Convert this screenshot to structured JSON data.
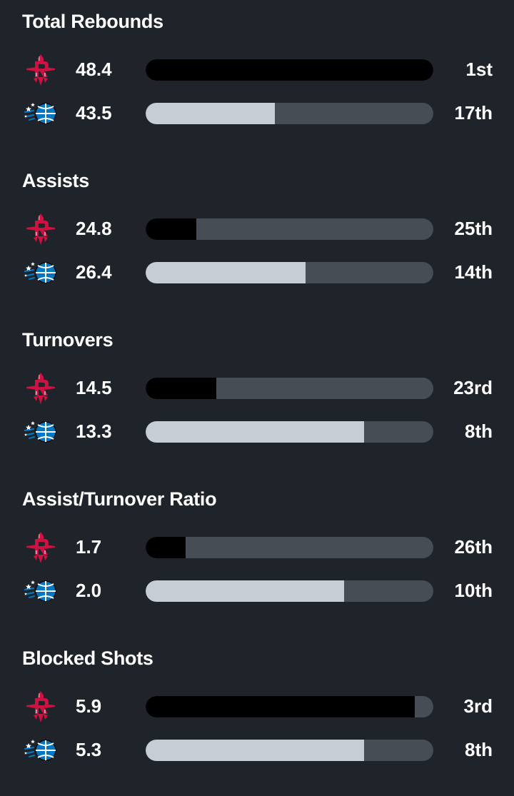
{
  "colors": {
    "background": "#1f232a",
    "track": "#464d55",
    "home_bar": "#000000",
    "away_bar": "#c6cdd4",
    "text": "#ffffff",
    "rockets_red": "#ce1141",
    "magic_blue": "#0077c0"
  },
  "teams": {
    "home": {
      "logo_icon": "houston-rockets-logo-icon"
    },
    "away": {
      "logo_icon": "orlando-magic-logo-icon"
    }
  },
  "sections": [
    {
      "title": "Total Rebounds",
      "home": {
        "value": "48.4",
        "rank": "1st",
        "bar_fraction": 1.0
      },
      "away": {
        "value": "43.5",
        "rank": "17th",
        "bar_fraction": 0.45
      }
    },
    {
      "title": "Assists",
      "home": {
        "value": "24.8",
        "rank": "25th",
        "bar_fraction": 0.175
      },
      "away": {
        "value": "26.4",
        "rank": "14th",
        "bar_fraction": 0.555
      }
    },
    {
      "title": "Turnovers",
      "home": {
        "value": "14.5",
        "rank": "23rd",
        "bar_fraction": 0.245
      },
      "away": {
        "value": "13.3",
        "rank": "8th",
        "bar_fraction": 0.76
      }
    },
    {
      "title": "Assist/Turnover Ratio",
      "home": {
        "value": "1.7",
        "rank": "26th",
        "bar_fraction": 0.14
      },
      "away": {
        "value": "2.0",
        "rank": "10th",
        "bar_fraction": 0.69
      }
    },
    {
      "title": "Blocked Shots",
      "home": {
        "value": "5.9",
        "rank": "3rd",
        "bar_fraction": 0.935
      },
      "away": {
        "value": "5.3",
        "rank": "8th",
        "bar_fraction": 0.76
      }
    }
  ]
}
